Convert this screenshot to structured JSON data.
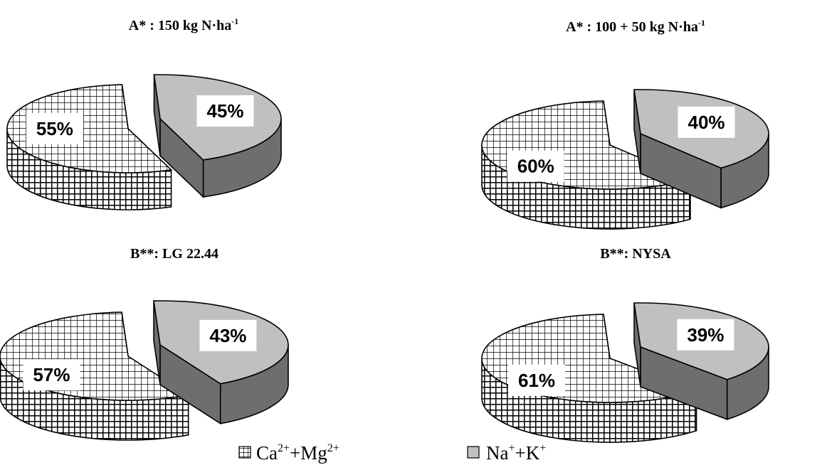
{
  "legend": {
    "position": "bottom",
    "ca": {
      "base": "Ca",
      "sup1": "2+",
      "mid": "+Mg",
      "sup2": "2+"
    },
    "na": {
      "base": "Na",
      "sup1": "+",
      "mid": "+K",
      "sup2": "+"
    }
  },
  "colors": {
    "ca_pattern_line": "#000000",
    "ca_pattern_bg": "#ffffff",
    "na_top": "#c0c0c0",
    "na_side": "#6e6e6e",
    "outline": "#000000"
  },
  "chart_data": [
    {
      "type": "pie",
      "title": "A*  :  150 kg N·ha",
      "title_sup": "-1",
      "categories": [
        "Ca2+ + Mg2+",
        "Na+ + K+"
      ],
      "values": [
        55,
        45
      ],
      "labels": [
        "55%",
        "45%"
      ]
    },
    {
      "type": "pie",
      "title": "A* :  100 + 50 kg N·ha",
      "title_sup": "-1",
      "categories": [
        "Ca2+ + Mg2+",
        "Na+ + K+"
      ],
      "values": [
        60,
        40
      ],
      "labels": [
        "60%",
        "40%"
      ]
    },
    {
      "type": "pie",
      "title": "B**:  LG 22.44",
      "title_sup": "",
      "categories": [
        "Ca2+ + Mg2+",
        "Na+ + K+"
      ],
      "values": [
        57,
        43
      ],
      "labels": [
        "57%",
        "43%"
      ]
    },
    {
      "type": "pie",
      "title": "B**: NYSA",
      "title_sup": "",
      "categories": [
        "Ca2+ + Mg2+",
        "Na+ + K+"
      ],
      "values": [
        61,
        39
      ],
      "labels": [
        "61%",
        "39%"
      ]
    }
  ]
}
